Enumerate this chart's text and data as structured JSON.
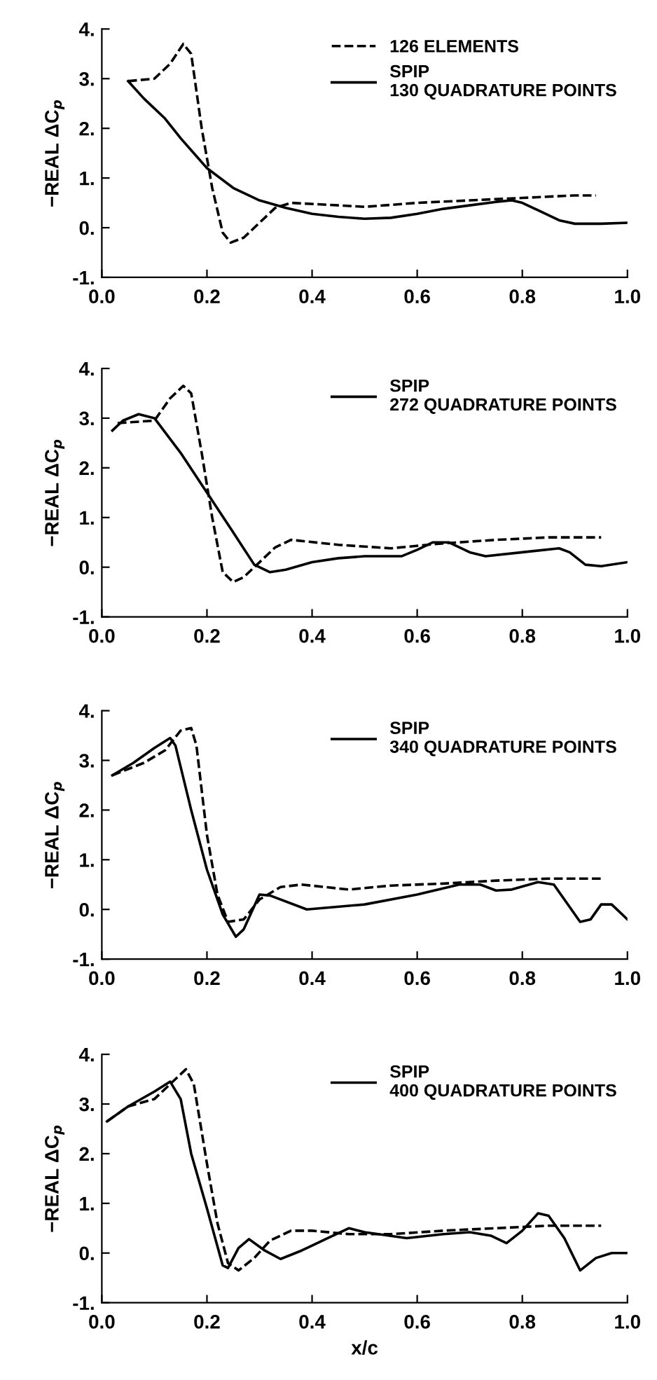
{
  "chart_data": [
    {
      "type": "line",
      "xlim": [
        0,
        1
      ],
      "ylim": [
        -1,
        4
      ],
      "ylabel": "−REAL ΔC$_{p}$",
      "legend": "top right",
      "grid": false,
      "marker": "none",
      "xticks": [
        {
          "value": 0,
          "label": "0.0"
        },
        {
          "value": 0.2,
          "label": "0.2"
        },
        {
          "value": 0.4,
          "label": "0.4"
        },
        {
          "value": 0.6,
          "label": "0.6"
        },
        {
          "value": 0.8,
          "label": "0.8"
        },
        {
          "value": 1,
          "label": "1.0"
        }
      ],
      "yticks": [
        {
          "value": -1,
          "label": "-1."
        },
        {
          "value": 0,
          "label": "0."
        },
        {
          "value": 1,
          "label": "1."
        },
        {
          "value": 2,
          "label": "2."
        },
        {
          "value": 3,
          "label": "3."
        },
        {
          "value": 4,
          "label": "4."
        }
      ],
      "series": [
        {
          "name": "126 ELEMENTS",
          "color": "#000000",
          "line_style": "dashed",
          "x": [
            0.05,
            0.1,
            0.13,
            0.155,
            0.17,
            0.19,
            0.21,
            0.23,
            0.245,
            0.27,
            0.3,
            0.33,
            0.36,
            0.45,
            0.5,
            0.6,
            0.7,
            0.8,
            0.9,
            0.94
          ],
          "values": [
            2.95,
            3.0,
            3.3,
            3.7,
            3.5,
            2.0,
            0.8,
            -0.1,
            -0.3,
            -0.2,
            0.1,
            0.4,
            0.5,
            0.45,
            0.42,
            0.5,
            0.55,
            0.6,
            0.65,
            0.65
          ]
        },
        {
          "name": "SPIP\n130 QUADRATURE POINTS",
          "color": "#000000",
          "line_style": "solid",
          "x": [
            0.05,
            0.08,
            0.12,
            0.15,
            0.2,
            0.25,
            0.3,
            0.35,
            0.4,
            0.45,
            0.5,
            0.55,
            0.6,
            0.65,
            0.7,
            0.75,
            0.78,
            0.8,
            0.83,
            0.87,
            0.9,
            0.95,
            1.0
          ],
          "values": [
            2.95,
            2.6,
            2.2,
            1.8,
            1.2,
            0.8,
            0.55,
            0.4,
            0.28,
            0.22,
            0.18,
            0.2,
            0.28,
            0.38,
            0.45,
            0.52,
            0.55,
            0.5,
            0.35,
            0.15,
            0.08,
            0.08,
            0.1
          ]
        }
      ]
    },
    {
      "type": "line",
      "xlim": [
        0,
        1
      ],
      "ylim": [
        -1,
        4
      ],
      "ylabel": "−REAL ΔC$_{p}$",
      "legend": "top right",
      "grid": false,
      "marker": "none",
      "xticks": [
        {
          "value": 0,
          "label": "0.0"
        },
        {
          "value": 0.2,
          "label": "0.2"
        },
        {
          "value": 0.4,
          "label": "0.4"
        },
        {
          "value": 0.6,
          "label": "0.6"
        },
        {
          "value": 0.8,
          "label": "0.8"
        },
        {
          "value": 1,
          "label": "1.0"
        }
      ],
      "yticks": [
        {
          "value": -1,
          "label": "-1."
        },
        {
          "value": 0,
          "label": "0."
        },
        {
          "value": 1,
          "label": "1."
        },
        {
          "value": 2,
          "label": "2."
        },
        {
          "value": 3,
          "label": "3."
        },
        {
          "value": 4,
          "label": "4."
        }
      ],
      "series": [
        {
          "color": "#000000",
          "line_style": "dashed",
          "x": [
            0.03,
            0.1,
            0.13,
            0.155,
            0.17,
            0.19,
            0.21,
            0.23,
            0.25,
            0.27,
            0.3,
            0.33,
            0.36,
            0.45,
            0.55,
            0.65,
            0.75,
            0.85,
            0.95
          ],
          "values": [
            2.9,
            2.95,
            3.4,
            3.65,
            3.5,
            2.3,
            1.0,
            -0.1,
            -0.3,
            -0.2,
            0.1,
            0.4,
            0.55,
            0.45,
            0.38,
            0.48,
            0.55,
            0.6,
            0.6
          ]
        },
        {
          "name": "SPIP\n272 QUADRATURE POINTS",
          "color": "#000000",
          "line_style": "solid",
          "x": [
            0.02,
            0.04,
            0.07,
            0.1,
            0.15,
            0.2,
            0.25,
            0.29,
            0.32,
            0.35,
            0.4,
            0.45,
            0.5,
            0.57,
            0.6,
            0.63,
            0.66,
            0.7,
            0.73,
            0.8,
            0.87,
            0.89,
            0.92,
            0.95,
            1.0
          ],
          "values": [
            2.75,
            2.95,
            3.08,
            3.0,
            2.3,
            1.5,
            0.7,
            0.05,
            -0.1,
            -0.05,
            0.1,
            0.18,
            0.22,
            0.22,
            0.35,
            0.5,
            0.5,
            0.3,
            0.22,
            0.3,
            0.38,
            0.3,
            0.05,
            0.02,
            0.1
          ]
        }
      ]
    },
    {
      "type": "line",
      "xlim": [
        0,
        1
      ],
      "ylim": [
        -1,
        4
      ],
      "ylabel": "−REAL ΔC$_{p}$",
      "legend": "top right",
      "grid": false,
      "marker": "none",
      "xticks": [
        {
          "value": 0,
          "label": "0.0"
        },
        {
          "value": 0.2,
          "label": "0.2"
        },
        {
          "value": 0.4,
          "label": "0.4"
        },
        {
          "value": 0.6,
          "label": "0.6"
        },
        {
          "value": 0.8,
          "label": "0.8"
        },
        {
          "value": 1,
          "label": "1.0"
        }
      ],
      "yticks": [
        {
          "value": -1,
          "label": "-1."
        },
        {
          "value": 0,
          "label": "0."
        },
        {
          "value": 1,
          "label": "1."
        },
        {
          "value": 2,
          "label": "2."
        },
        {
          "value": 3,
          "label": "3."
        },
        {
          "value": 4,
          "label": "4."
        }
      ],
      "series": [
        {
          "color": "#000000",
          "line_style": "dashed",
          "x": [
            0.02,
            0.08,
            0.12,
            0.15,
            0.17,
            0.18,
            0.2,
            0.22,
            0.24,
            0.27,
            0.3,
            0.34,
            0.38,
            0.47,
            0.55,
            0.65,
            0.75,
            0.85,
            0.95
          ],
          "values": [
            2.7,
            2.95,
            3.2,
            3.6,
            3.65,
            3.3,
            1.5,
            0.3,
            -0.25,
            -0.2,
            0.2,
            0.45,
            0.5,
            0.4,
            0.48,
            0.52,
            0.58,
            0.62,
            0.62
          ]
        },
        {
          "name": "SPIP\n340 QUADRATURE POINTS",
          "color": "#000000",
          "line_style": "solid",
          "x": [
            0.02,
            0.06,
            0.1,
            0.13,
            0.14,
            0.17,
            0.2,
            0.23,
            0.255,
            0.27,
            0.3,
            0.32,
            0.39,
            0.5,
            0.6,
            0.68,
            0.72,
            0.75,
            0.78,
            0.83,
            0.86,
            0.88,
            0.91,
            0.93,
            0.95,
            0.97,
            1.0
          ],
          "values": [
            2.7,
            2.95,
            3.25,
            3.45,
            3.3,
            2.0,
            0.8,
            -0.1,
            -0.55,
            -0.4,
            0.3,
            0.28,
            0.0,
            0.1,
            0.3,
            0.5,
            0.5,
            0.38,
            0.4,
            0.55,
            0.5,
            0.2,
            -0.25,
            -0.2,
            0.1,
            0.1,
            -0.2
          ]
        }
      ]
    },
    {
      "type": "line",
      "xlim": [
        0,
        1
      ],
      "ylim": [
        -1,
        4
      ],
      "xlabel": "x/c",
      "ylabel": "−REAL ΔC$_{p}$",
      "legend": "top right",
      "grid": false,
      "marker": "none",
      "xticks": [
        {
          "value": 0,
          "label": "0.0"
        },
        {
          "value": 0.2,
          "label": "0.2"
        },
        {
          "value": 0.4,
          "label": "0.4"
        },
        {
          "value": 0.6,
          "label": "0.6"
        },
        {
          "value": 0.8,
          "label": "0.8"
        },
        {
          "value": 1,
          "label": "1.0"
        }
      ],
      "yticks": [
        {
          "value": -1,
          "label": "-1."
        },
        {
          "value": 0,
          "label": "0."
        },
        {
          "value": 1,
          "label": "1."
        },
        {
          "value": 2,
          "label": "2."
        },
        {
          "value": 3,
          "label": "3."
        },
        {
          "value": 4,
          "label": "4."
        }
      ],
      "series": [
        {
          "color": "#000000",
          "line_style": "dashed",
          "x": [
            0.01,
            0.05,
            0.1,
            0.14,
            0.16,
            0.175,
            0.2,
            0.22,
            0.24,
            0.26,
            0.29,
            0.32,
            0.36,
            0.4,
            0.47,
            0.55,
            0.65,
            0.75,
            0.85,
            0.95
          ],
          "values": [
            2.65,
            2.95,
            3.1,
            3.5,
            3.7,
            3.4,
            1.8,
            0.6,
            -0.2,
            -0.35,
            -0.1,
            0.25,
            0.45,
            0.45,
            0.38,
            0.38,
            0.45,
            0.5,
            0.55,
            0.55
          ]
        },
        {
          "name": "SPIP\n400 QUADRATURE POINTS",
          "color": "#000000",
          "line_style": "solid",
          "x": [
            0.01,
            0.05,
            0.1,
            0.13,
            0.15,
            0.17,
            0.2,
            0.23,
            0.24,
            0.26,
            0.28,
            0.31,
            0.34,
            0.38,
            0.43,
            0.47,
            0.5,
            0.58,
            0.65,
            0.7,
            0.74,
            0.77,
            0.8,
            0.83,
            0.85,
            0.88,
            0.91,
            0.94,
            0.97,
            1.0
          ],
          "values": [
            2.65,
            2.95,
            3.25,
            3.45,
            3.1,
            2.0,
            0.9,
            -0.25,
            -0.3,
            0.1,
            0.28,
            0.05,
            -0.12,
            0.05,
            0.3,
            0.5,
            0.42,
            0.3,
            0.38,
            0.42,
            0.35,
            0.2,
            0.45,
            0.8,
            0.75,
            0.3,
            -0.35,
            -0.1,
            0.0,
            0.0
          ]
        }
      ]
    }
  ]
}
